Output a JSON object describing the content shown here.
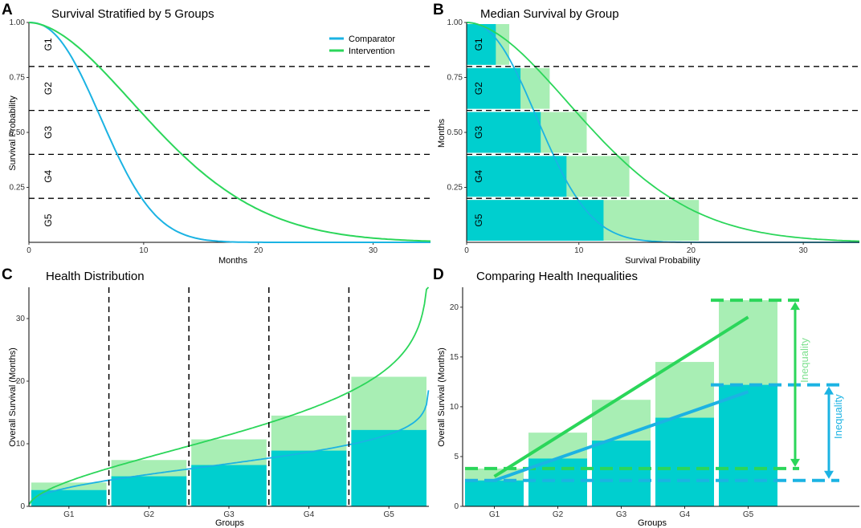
{
  "colors": {
    "comparator": "#1bb3e3",
    "intervention": "#2bd65a",
    "comp_bar": "#00cfcf",
    "int_bar": "#a8eeb4"
  },
  "legend": {
    "comparator": "Comparator",
    "intervention": "Intervention"
  },
  "chart_data": [
    {
      "type": "line",
      "panel": "A",
      "title": "Survival Stratified by 5 Groups",
      "xlabel": "Months",
      "ylabel": "Survival Probability",
      "xlim": [
        0,
        35
      ],
      "ylim": [
        0,
        1
      ],
      "xticks": [
        "0",
        "10",
        "20",
        "30"
      ],
      "yticks": [
        "0.25",
        "0.50",
        "0.75",
        "1.00"
      ],
      "thresholds": [
        0.8,
        0.6,
        0.4,
        0.2
      ],
      "group_labels": [
        "G1",
        "G2",
        "G3",
        "G4",
        "G5"
      ],
      "series": [
        {
          "name": "Comparator",
          "weibull_scale": 8.0,
          "weibull_shape": 2.3
        },
        {
          "name": "Intervention",
          "weibull_scale": 14.0,
          "weibull_shape": 1.8
        }
      ]
    },
    {
      "type": "bar",
      "panel": "B",
      "title": "Median Survival by Group",
      "xlabel": "Survival Probability",
      "ylabel": "Months",
      "xlim": [
        0,
        35
      ],
      "ylim": [
        0,
        1
      ],
      "xticks": [
        "0",
        "10",
        "20",
        "30"
      ],
      "yticks": [
        "0.25",
        "0.50",
        "0.75",
        "1.00"
      ],
      "group_labels": [
        "G1",
        "G2",
        "G3",
        "G4",
        "G5"
      ],
      "comparator_values": [
        2.6,
        4.8,
        6.6,
        8.9,
        12.2
      ],
      "intervention_values": [
        3.8,
        7.4,
        10.7,
        14.5,
        20.7
      ]
    },
    {
      "type": "bar",
      "panel": "C",
      "title": "Health Distribution",
      "xlabel": "Groups",
      "ylabel": "Overall Survival (Months)",
      "ylim": [
        0,
        35
      ],
      "yticks": [
        "0",
        "10",
        "20",
        "30"
      ],
      "categories": [
        "G1",
        "G2",
        "G3",
        "G4",
        "G5"
      ],
      "series": [
        {
          "name": "Comparator",
          "values": [
            2.6,
            4.8,
            6.6,
            8.9,
            12.2
          ]
        },
        {
          "name": "Intervention",
          "values": [
            3.8,
            7.4,
            10.7,
            14.5,
            20.7
          ]
        }
      ]
    },
    {
      "type": "bar",
      "panel": "D",
      "title": "Comparing Health Inequalities",
      "xlabel": "Groups",
      "ylabel": "Overall Survival (Months)",
      "ylim": [
        0,
        22
      ],
      "yticks": [
        "0",
        "5",
        "10",
        "15",
        "20"
      ],
      "categories": [
        "G1",
        "G2",
        "G3",
        "G4",
        "G5"
      ],
      "series": [
        {
          "name": "Comparator",
          "values": [
            2.6,
            4.8,
            6.6,
            8.9,
            12.2
          ]
        },
        {
          "name": "Intervention",
          "values": [
            3.8,
            7.4,
            10.7,
            14.5,
            20.7
          ]
        }
      ],
      "trend_lines": [
        {
          "name": "Comparator",
          "start": 2.6,
          "end": 11.5
        },
        {
          "name": "Intervention",
          "start": 3.0,
          "end": 19.0
        }
      ],
      "inequality_label": "Inequality"
    }
  ]
}
